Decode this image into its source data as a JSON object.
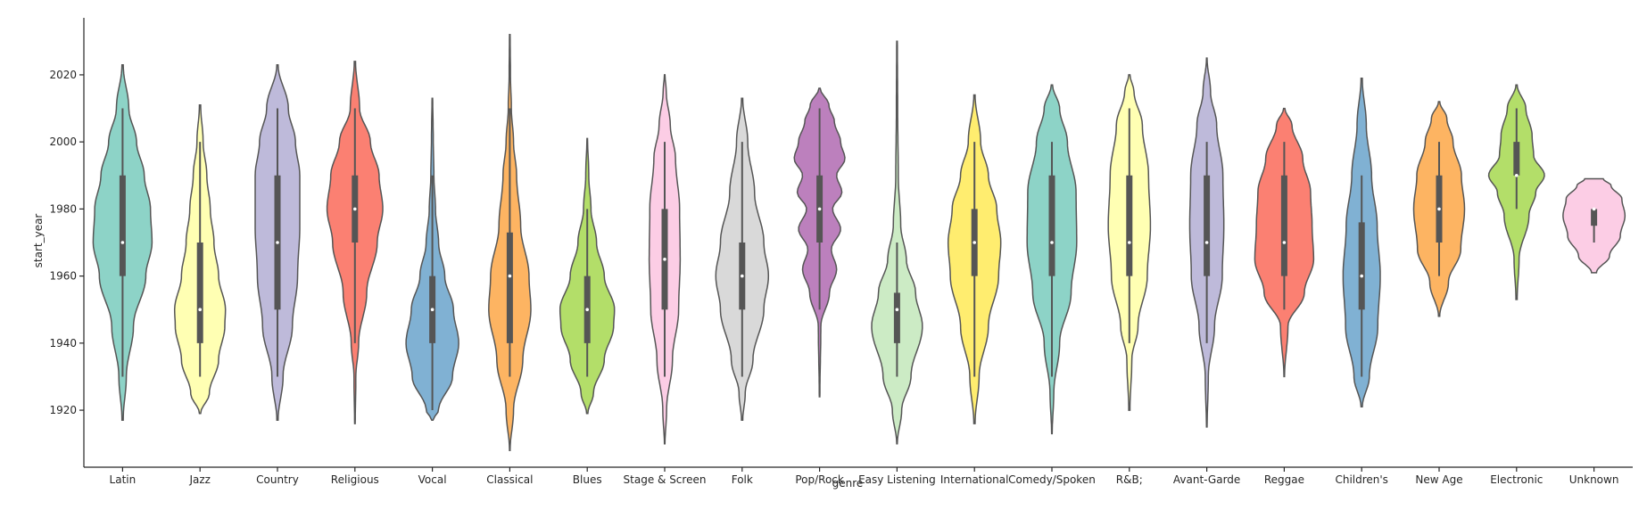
{
  "chart_data": {
    "type": "violin",
    "xlabel": "genre",
    "ylabel": "start_year",
    "ylim": [
      1903,
      2037
    ],
    "yticks": [
      1920,
      1940,
      1960,
      1980,
      2000,
      2020
    ],
    "grid": false,
    "categories": [
      "Latin",
      "Jazz",
      "Country",
      "Religious",
      "Vocal",
      "Classical",
      "Blues",
      "Stage & Screen",
      "Folk",
      "Pop/Rock",
      "Easy Listening",
      "International",
      "Comedy/Spoken",
      "R&B;",
      "Avant-Garde",
      "Reggae",
      "Children's",
      "New Age",
      "Electronic",
      "Unknown"
    ],
    "series": [
      {
        "color": "#8dd3c7",
        "min": 1917,
        "max": 2023,
        "whisker_low": 1930,
        "whisker_high": 2010,
        "q1": 1960,
        "median": 1970,
        "q3": 1990,
        "density": [
          [
            1917,
            0.02
          ],
          [
            1930,
            0.12
          ],
          [
            1945,
            0.35
          ],
          [
            1960,
            0.75
          ],
          [
            1970,
            0.95
          ],
          [
            1980,
            0.9
          ],
          [
            1990,
            0.7
          ],
          [
            2000,
            0.45
          ],
          [
            2010,
            0.2
          ],
          [
            2023,
            0.02
          ]
        ]
      },
      {
        "color": "#ffffb3",
        "min": 1919,
        "max": 2011,
        "whisker_low": 1930,
        "whisker_high": 2000,
        "q1": 1940,
        "median": 1950,
        "q3": 1970,
        "density": [
          [
            1919,
            0.02
          ],
          [
            1925,
            0.3
          ],
          [
            1935,
            0.6
          ],
          [
            1945,
            0.8
          ],
          [
            1950,
            0.82
          ],
          [
            1960,
            0.6
          ],
          [
            1970,
            0.45
          ],
          [
            1980,
            0.33
          ],
          [
            1990,
            0.22
          ],
          [
            2000,
            0.1
          ],
          [
            2011,
            0.02
          ]
        ]
      },
      {
        "color": "#bebada",
        "min": 1917,
        "max": 2023,
        "whisker_low": 1930,
        "whisker_high": 2010,
        "q1": 1950,
        "median": 1970,
        "q3": 1990,
        "density": [
          [
            1917,
            0.02
          ],
          [
            1930,
            0.18
          ],
          [
            1945,
            0.48
          ],
          [
            1960,
            0.65
          ],
          [
            1975,
            0.72
          ],
          [
            1990,
            0.72
          ],
          [
            2000,
            0.58
          ],
          [
            2010,
            0.35
          ],
          [
            2023,
            0.02
          ]
        ]
      },
      {
        "color": "#fb8072",
        "min": 1916,
        "max": 2024,
        "whisker_low": 1940,
        "whisker_high": 2010,
        "q1": 1970,
        "median": 1980,
        "q3": 1990,
        "density": [
          [
            1916,
            0.01
          ],
          [
            1930,
            0.03
          ],
          [
            1940,
            0.12
          ],
          [
            1955,
            0.38
          ],
          [
            1970,
            0.72
          ],
          [
            1980,
            0.9
          ],
          [
            1990,
            0.78
          ],
          [
            2000,
            0.5
          ],
          [
            2010,
            0.15
          ],
          [
            2024,
            0.02
          ]
        ]
      },
      {
        "color": "#80b1d3",
        "min": 1917,
        "max": 2013,
        "whisker_low": 1920,
        "whisker_high": 1990,
        "q1": 1940,
        "median": 1950,
        "q3": 1960,
        "density": [
          [
            1917,
            0.02
          ],
          [
            1920,
            0.2
          ],
          [
            1930,
            0.65
          ],
          [
            1940,
            0.85
          ],
          [
            1950,
            0.68
          ],
          [
            1960,
            0.4
          ],
          [
            1970,
            0.2
          ],
          [
            1980,
            0.1
          ],
          [
            1990,
            0.05
          ],
          [
            2000,
            0.03
          ],
          [
            2013,
            0.01
          ]
        ]
      },
      {
        "color": "#fdb462",
        "min": 1908,
        "max": 2032,
        "whisker_low": 1930,
        "whisker_high": 2010,
        "q1": 1940,
        "median": 1960,
        "q3": 1973,
        "density": [
          [
            1908,
            0.01
          ],
          [
            1920,
            0.12
          ],
          [
            1935,
            0.42
          ],
          [
            1950,
            0.68
          ],
          [
            1960,
            0.62
          ],
          [
            1975,
            0.35
          ],
          [
            1990,
            0.22
          ],
          [
            2000,
            0.12
          ],
          [
            2010,
            0.05
          ],
          [
            2020,
            0.02
          ],
          [
            2032,
            0.01
          ]
        ]
      },
      {
        "color": "#b3de69",
        "min": 1919,
        "max": 2001,
        "whisker_low": 1930,
        "whisker_high": 1980,
        "q1": 1940,
        "median": 1950,
        "q3": 1960,
        "density": [
          [
            1919,
            0.02
          ],
          [
            1925,
            0.2
          ],
          [
            1935,
            0.55
          ],
          [
            1945,
            0.85
          ],
          [
            1950,
            0.88
          ],
          [
            1960,
            0.55
          ],
          [
            1970,
            0.3
          ],
          [
            1980,
            0.12
          ],
          [
            1990,
            0.05
          ],
          [
            2001,
            0.01
          ]
        ]
      },
      {
        "color": "#fccde5",
        "min": 1910,
        "max": 2020,
        "whisker_low": 1930,
        "whisker_high": 2000,
        "q1": 1950,
        "median": 1965,
        "q3": 1980,
        "density": [
          [
            1910,
            0.01
          ],
          [
            1920,
            0.06
          ],
          [
            1935,
            0.25
          ],
          [
            1950,
            0.45
          ],
          [
            1965,
            0.5
          ],
          [
            1980,
            0.48
          ],
          [
            1995,
            0.35
          ],
          [
            2005,
            0.18
          ],
          [
            2015,
            0.05
          ],
          [
            2020,
            0.01
          ]
        ]
      },
      {
        "color": "#d9d9d9",
        "min": 1917,
        "max": 2013,
        "whisker_low": 1930,
        "whisker_high": 2000,
        "q1": 1950,
        "median": 1960,
        "q3": 1970,
        "density": [
          [
            1917,
            0.02
          ],
          [
            1925,
            0.1
          ],
          [
            1935,
            0.35
          ],
          [
            1950,
            0.7
          ],
          [
            1960,
            0.85
          ],
          [
            1970,
            0.7
          ],
          [
            1985,
            0.4
          ],
          [
            2000,
            0.18
          ],
          [
            2013,
            0.02
          ]
        ]
      },
      {
        "color": "#bc80bd",
        "min": 1924,
        "max": 2016,
        "whisker_low": 1950,
        "whisker_high": 2010,
        "q1": 1970,
        "median": 1980,
        "q3": 1990,
        "density": [
          [
            1924,
            0.01
          ],
          [
            1945,
            0.04
          ],
          [
            1955,
            0.32
          ],
          [
            1962,
            0.55
          ],
          [
            1968,
            0.38
          ],
          [
            1974,
            0.68
          ],
          [
            1980,
            0.42
          ],
          [
            1985,
            0.72
          ],
          [
            1990,
            0.55
          ],
          [
            1995,
            0.82
          ],
          [
            2000,
            0.68
          ],
          [
            2006,
            0.48
          ],
          [
            2011,
            0.3
          ],
          [
            2016,
            0.02
          ]
        ]
      },
      {
        "color": "#ccebc5",
        "min": 1910,
        "max": 2030,
        "whisker_low": 1930,
        "whisker_high": 1970,
        "q1": 1940,
        "median": 1950,
        "q3": 1955,
        "density": [
          [
            1910,
            0.01
          ],
          [
            1920,
            0.15
          ],
          [
            1930,
            0.45
          ],
          [
            1945,
            0.82
          ],
          [
            1955,
            0.6
          ],
          [
            1965,
            0.3
          ],
          [
            1975,
            0.12
          ],
          [
            1990,
            0.04
          ],
          [
            2010,
            0.02
          ],
          [
            2030,
            0.01
          ]
        ]
      },
      {
        "color": "#ffed6f",
        "min": 1916,
        "max": 2014,
        "whisker_low": 1930,
        "whisker_high": 2000,
        "q1": 1960,
        "median": 1970,
        "q3": 1980,
        "density": [
          [
            1916,
            0.02
          ],
          [
            1930,
            0.15
          ],
          [
            1945,
            0.45
          ],
          [
            1960,
            0.78
          ],
          [
            1970,
            0.85
          ],
          [
            1980,
            0.72
          ],
          [
            1990,
            0.45
          ],
          [
            2000,
            0.2
          ],
          [
            2014,
            0.02
          ]
        ]
      },
      {
        "color": "#8dd3c7",
        "min": 1913,
        "max": 2017,
        "whisker_low": 1930,
        "whisker_high": 2000,
        "q1": 1960,
        "median": 1970,
        "q3": 1990,
        "density": [
          [
            1913,
            0.01
          ],
          [
            1925,
            0.06
          ],
          [
            1940,
            0.25
          ],
          [
            1955,
            0.62
          ],
          [
            1970,
            0.8
          ],
          [
            1985,
            0.78
          ],
          [
            2000,
            0.5
          ],
          [
            2010,
            0.25
          ],
          [
            2017,
            0.02
          ]
        ]
      },
      {
        "color": "#ffffb3",
        "min": 1920,
        "max": 2020,
        "whisker_low": 1940,
        "whisker_high": 2010,
        "q1": 1960,
        "median": 1970,
        "q3": 1990,
        "density": [
          [
            1920,
            0.02
          ],
          [
            1935,
            0.08
          ],
          [
            1945,
            0.28
          ],
          [
            1960,
            0.58
          ],
          [
            1975,
            0.68
          ],
          [
            1990,
            0.62
          ],
          [
            2005,
            0.42
          ],
          [
            2015,
            0.15
          ],
          [
            2020,
            0.02
          ]
        ]
      },
      {
        "color": "#bebada",
        "min": 1915,
        "max": 2025,
        "whisker_low": 1940,
        "whisker_high": 2000,
        "q1": 1960,
        "median": 1970,
        "q3": 1990,
        "density": [
          [
            1915,
            0.01
          ],
          [
            1930,
            0.05
          ],
          [
            1945,
            0.25
          ],
          [
            1960,
            0.5
          ],
          [
            1975,
            0.55
          ],
          [
            1990,
            0.52
          ],
          [
            2005,
            0.32
          ],
          [
            2015,
            0.12
          ],
          [
            2025,
            0.01
          ]
        ]
      },
      {
        "color": "#fb8072",
        "min": 1930,
        "max": 2010,
        "whisker_low": 1950,
        "whisker_high": 2000,
        "q1": 1960,
        "median": 1970,
        "q3": 1990,
        "density": [
          [
            1930,
            0.01
          ],
          [
            1945,
            0.12
          ],
          [
            1955,
            0.65
          ],
          [
            1965,
            0.95
          ],
          [
            1975,
            0.9
          ],
          [
            1985,
            0.85
          ],
          [
            1995,
            0.6
          ],
          [
            2005,
            0.25
          ],
          [
            2010,
            0.02
          ]
        ]
      },
      {
        "color": "#80b1d3",
        "min": 1921,
        "max": 2019,
        "whisker_low": 1930,
        "whisker_high": 1990,
        "q1": 1950,
        "median": 1960,
        "q3": 1976,
        "density": [
          [
            1921,
            0.02
          ],
          [
            1930,
            0.25
          ],
          [
            1945,
            0.52
          ],
          [
            1960,
            0.6
          ],
          [
            1975,
            0.5
          ],
          [
            1990,
            0.32
          ],
          [
            2005,
            0.15
          ],
          [
            2019,
            0.02
          ]
        ]
      },
      {
        "color": "#fdb462",
        "min": 1948,
        "max": 2012,
        "whisker_low": 1960,
        "whisker_high": 2000,
        "q1": 1970,
        "median": 1980,
        "q3": 1990,
        "density": [
          [
            1948,
            0.02
          ],
          [
            1958,
            0.3
          ],
          [
            1968,
            0.7
          ],
          [
            1980,
            0.82
          ],
          [
            1990,
            0.72
          ],
          [
            2000,
            0.45
          ],
          [
            2007,
            0.25
          ],
          [
            2012,
            0.02
          ]
        ]
      },
      {
        "color": "#b3de69",
        "min": 1953,
        "max": 2017,
        "whisker_low": 1980,
        "whisker_high": 2010,
        "q1": 1990,
        "median": 1990,
        "q3": 2000,
        "density": [
          [
            1953,
            0.02
          ],
          [
            1965,
            0.08
          ],
          [
            1978,
            0.4
          ],
          [
            1985,
            0.62
          ],
          [
            1990,
            0.9
          ],
          [
            1996,
            0.55
          ],
          [
            2002,
            0.5
          ],
          [
            2010,
            0.3
          ],
          [
            2017,
            0.02
          ]
        ]
      },
      {
        "color": "#fccde5",
        "min": 1961,
        "max": 1989,
        "whisker_low": 1970,
        "whisker_high": 1980,
        "q1": 1975,
        "median": 1980,
        "q3": 1980,
        "density": [
          [
            1961,
            0.08
          ],
          [
            1966,
            0.5
          ],
          [
            1972,
            0.85
          ],
          [
            1978,
            1.0
          ],
          [
            1983,
            0.9
          ],
          [
            1987,
            0.55
          ],
          [
            1989,
            0.3
          ]
        ]
      }
    ]
  }
}
